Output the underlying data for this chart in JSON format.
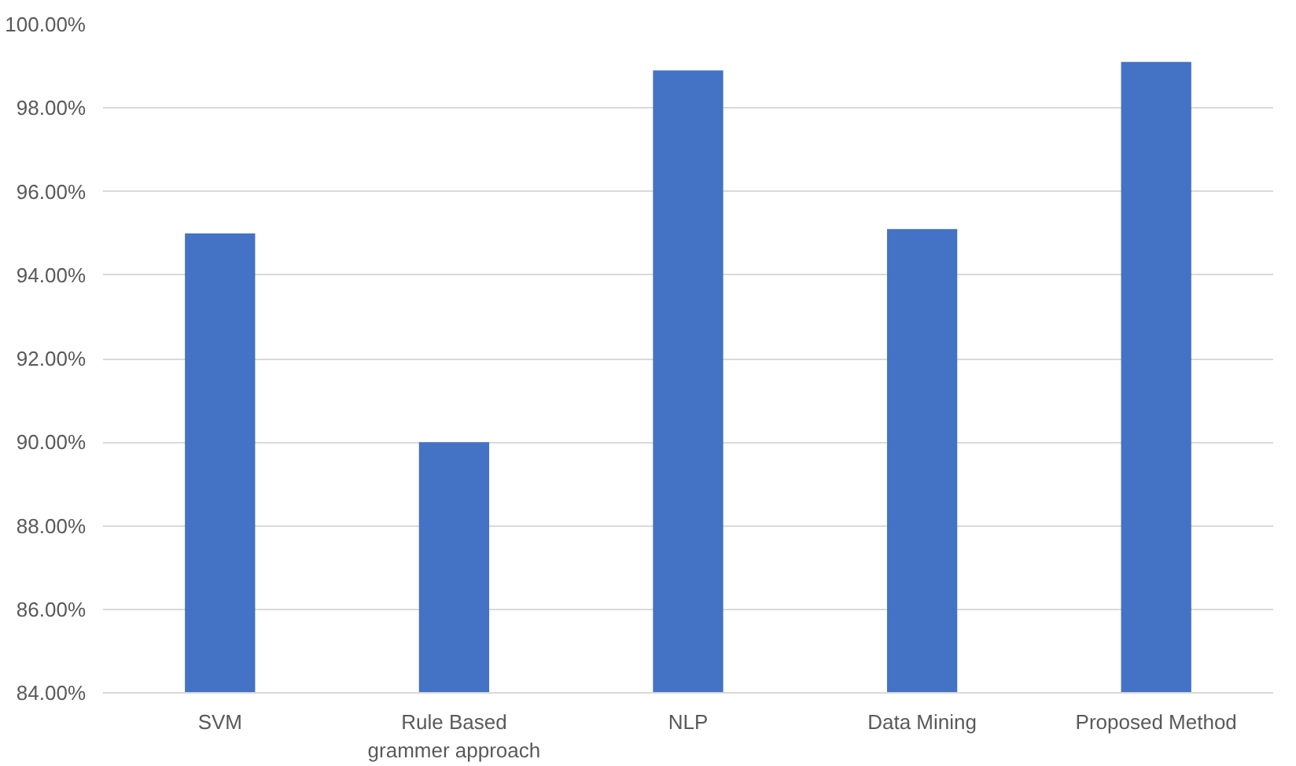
{
  "chart_data": {
    "type": "bar",
    "categories": [
      "SVM",
      "Rule Based\ngrammer approach",
      "NLP",
      "Data Mining",
      "Proposed Method"
    ],
    "values": [
      95.0,
      90.0,
      98.9,
      95.1,
      99.1
    ],
    "color": "#4472c4",
    "ylim": [
      84,
      100
    ],
    "yticks": [
      {
        "value": 84,
        "label": "84.00%"
      },
      {
        "value": 86,
        "label": "86.00%"
      },
      {
        "value": 88,
        "label": "88.00%"
      },
      {
        "value": 90,
        "label": "90.00%"
      },
      {
        "value": 92,
        "label": "92.00%"
      },
      {
        "value": 94,
        "label": "94.00%"
      },
      {
        "value": 96,
        "label": "96.00%"
      },
      {
        "value": 98,
        "label": "98.00%"
      },
      {
        "value": 100,
        "label": "100.00%"
      }
    ],
    "grid": "y"
  }
}
